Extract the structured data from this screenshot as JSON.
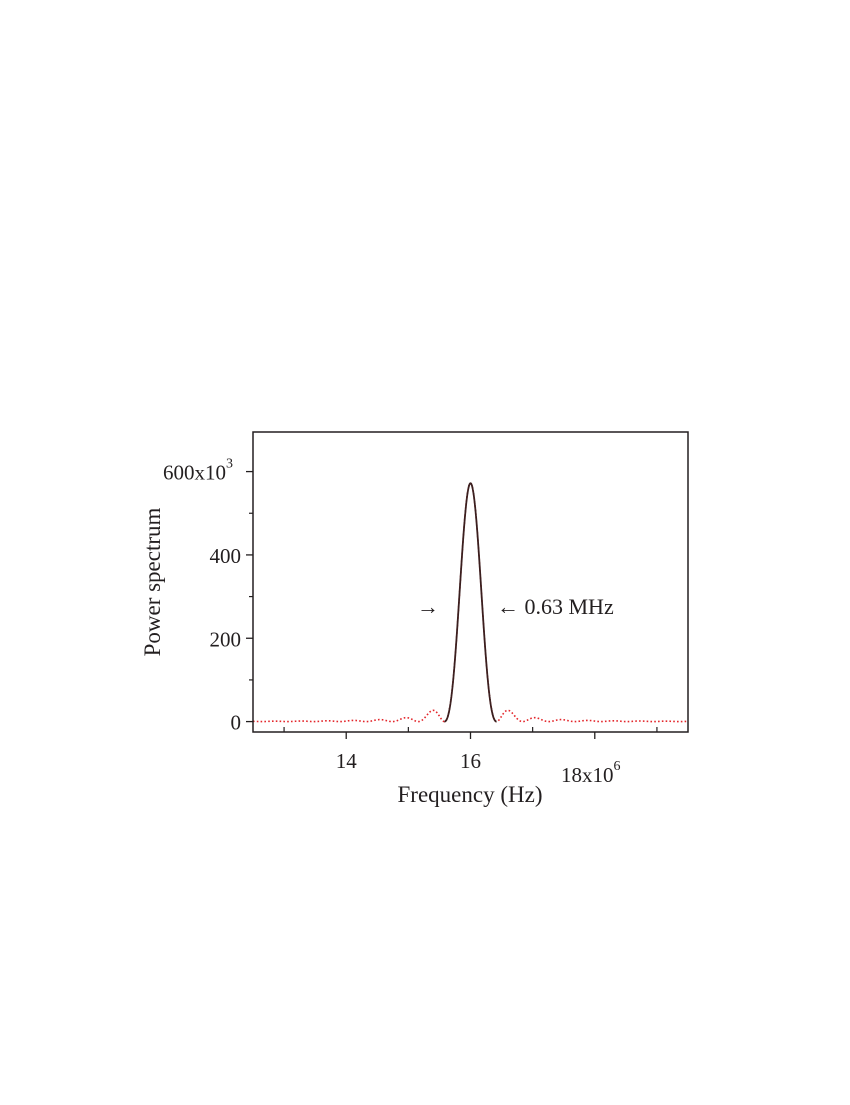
{
  "chart_data": {
    "type": "line",
    "xlabel": "Frequency (Hz)",
    "ylabel": "Power spectrum",
    "xlim": [
      12500000,
      19500000
    ],
    "ylim": [
      -25000,
      695000
    ],
    "x_ticks": [
      {
        "value": 14000000,
        "label": "14"
      },
      {
        "value": 16000000,
        "label": "16"
      },
      {
        "value": 18000000,
        "label": "18x10",
        "sup": "6"
      }
    ],
    "x_minor_ticks": [
      13000000,
      15000000,
      17000000,
      19000000
    ],
    "y_ticks": [
      {
        "value": 0,
        "label": "0"
      },
      {
        "value": 200000,
        "label": "200"
      },
      {
        "value": 400000,
        "label": "400"
      },
      {
        "value": 600000,
        "label": "600x10",
        "sup": "3"
      }
    ],
    "y_minor_ticks": [
      100000,
      300000,
      500000
    ],
    "grid": false,
    "legend": "none",
    "series": [
      {
        "style": "dotted",
        "color": "#e3262b",
        "kind": "sinc-squared",
        "center": 16000000,
        "peak": 572000,
        "first_zero_halfwidth": 420000,
        "x_range": [
          12500000,
          19500000
        ]
      },
      {
        "style": "solid",
        "color": "#3a1f1f",
        "kind": "sinc-squared main lobe",
        "center": 16000000,
        "peak": 572000,
        "first_zero_halfwidth": 420000,
        "x_range": [
          15580000,
          16420000
        ]
      }
    ],
    "annotations": {
      "left_arrow": "→",
      "right_text": "← 0.63 MHz",
      "width_value": "0.63 MHz",
      "at_y": 280000
    }
  }
}
